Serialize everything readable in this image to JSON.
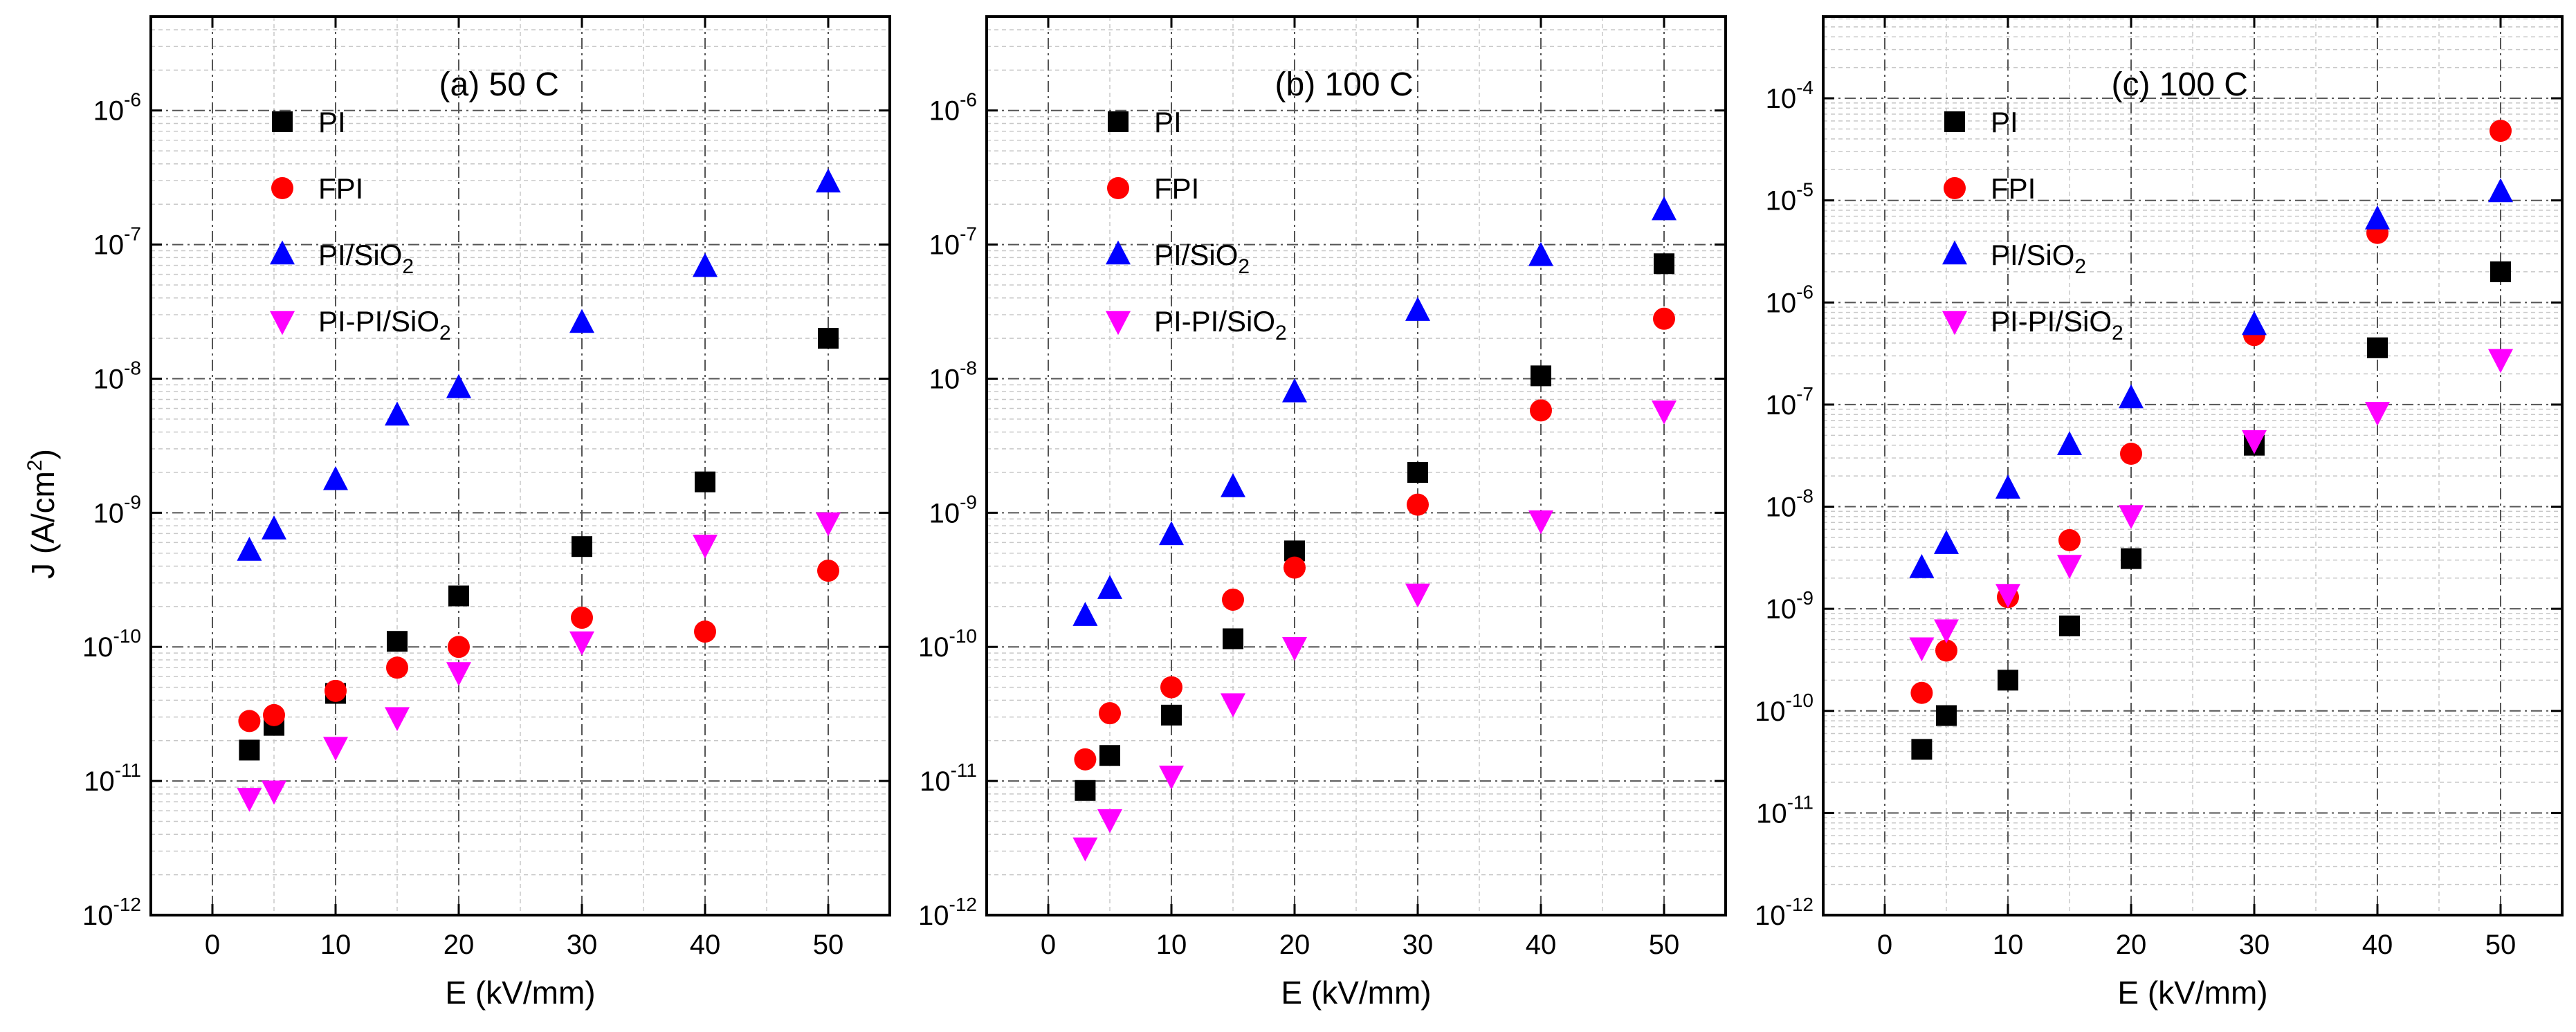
{
  "colors": {
    "PI": "#000000",
    "FPI": "#ff0000",
    "PI/SiO2": "#0000ff",
    "PI-PI/SiO2": "#ff00ff"
  },
  "chart_data": [
    {
      "type": "scatter",
      "title": "(a) 50 C",
      "xlabel": "E (kV/mm)",
      "ylabel": "J (A/cm²)",
      "yscale": "log",
      "xlim": [
        -5,
        55
      ],
      "ylim_exp": [
        -12,
        -5.3
      ],
      "x_ticks": [
        "0",
        "10",
        "20",
        "30",
        "40",
        "50"
      ],
      "y_ticks": [
        {
          "base": "10",
          "exp": "-12"
        },
        {
          "base": "10",
          "exp": "-11"
        },
        {
          "base": "10",
          "exp": "-10"
        },
        {
          "base": "10",
          "exp": "-9"
        },
        {
          "base": "10",
          "exp": "-8"
        },
        {
          "base": "10",
          "exp": "-7"
        },
        {
          "base": "10",
          "exp": "-6"
        }
      ],
      "grid": true,
      "legend": "top-left",
      "x": [
        3,
        5,
        10,
        15,
        20,
        30,
        40,
        50
      ],
      "series": [
        {
          "name": "PI",
          "legend": {
            "main": "PI",
            "sub": "",
            "tail": ""
          },
          "marker": "square",
          "values": [
            1.7e-11,
            2.6e-11,
            4.5e-11,
            1.1e-10,
            2.4e-10,
            5.6e-10,
            1.7e-09,
            2e-08
          ]
        },
        {
          "name": "FPI",
          "legend": {
            "main": "FPI",
            "sub": "",
            "tail": ""
          },
          "marker": "circle",
          "values": [
            2.8e-11,
            3.1e-11,
            4.7e-11,
            7e-11,
            1e-10,
            1.65e-10,
            1.3e-10,
            3.7e-10
          ]
        },
        {
          "name": "PI/SiO2",
          "legend": {
            "main": "PI/SiO",
            "sub": "2",
            "tail": ""
          },
          "marker": "triangle-up",
          "values": [
            5.2e-10,
            7.5e-10,
            1.75e-09,
            5.3e-09,
            8.5e-09,
            2.6e-08,
            6.8e-08,
            2.9e-07
          ]
        },
        {
          "name": "PI-PI/SiO2",
          "legend": {
            "main": "PI-PI/SiO",
            "sub": "2",
            "tail": ""
          },
          "marker": "triangle-down",
          "values": [
            7.5e-12,
            8.5e-12,
            1.8e-11,
            3e-11,
            6.5e-11,
            1.1e-10,
            5.8e-10,
            8.5e-10
          ]
        }
      ]
    },
    {
      "type": "scatter",
      "title": "(b) 100 C",
      "xlabel": "E (kV/mm)",
      "ylabel": "",
      "yscale": "log",
      "xlim": [
        -5,
        55
      ],
      "ylim_exp": [
        -12,
        -5.3
      ],
      "x_ticks": [
        "0",
        "10",
        "20",
        "30",
        "40",
        "50"
      ],
      "y_ticks": [
        {
          "base": "10",
          "exp": "-12"
        },
        {
          "base": "10",
          "exp": "-11"
        },
        {
          "base": "10",
          "exp": "-10"
        },
        {
          "base": "10",
          "exp": "-9"
        },
        {
          "base": "10",
          "exp": "-8"
        },
        {
          "base": "10",
          "exp": "-7"
        },
        {
          "base": "10",
          "exp": "-6"
        }
      ],
      "grid": true,
      "legend": "top-left",
      "x": [
        3,
        5,
        10,
        15,
        20,
        30,
        40,
        50
      ],
      "series": [
        {
          "name": "PI",
          "legend": {
            "main": "PI",
            "sub": "",
            "tail": ""
          },
          "marker": "square",
          "values": [
            8.5e-12,
            1.55e-11,
            3.1e-11,
            1.15e-10,
            5.2e-10,
            2e-09,
            1.05e-08,
            7.2e-08
          ]
        },
        {
          "name": "FPI",
          "legend": {
            "main": "FPI",
            "sub": "",
            "tail": ""
          },
          "marker": "circle",
          "values": [
            1.45e-11,
            3.2e-11,
            5e-11,
            2.25e-10,
            3.9e-10,
            1.15e-09,
            5.8e-09,
            2.8e-08
          ]
        },
        {
          "name": "PI/SiO2",
          "legend": {
            "main": "PI/SiO",
            "sub": "2",
            "tail": ""
          },
          "marker": "triangle-up",
          "values": [
            1.7e-10,
            2.7e-10,
            6.8e-10,
            1.55e-09,
            7.9e-09,
            3.2e-08,
            8.2e-08,
            1.8e-07
          ]
        },
        {
          "name": "PI-PI/SiO2",
          "legend": {
            "main": "PI-PI/SiO",
            "sub": "2",
            "tail": ""
          },
          "marker": "triangle-down",
          "values": [
            3.2e-12,
            5.2e-12,
            1.1e-11,
            3.8e-11,
            1e-10,
            2.5e-10,
            8.8e-10,
            5.8e-09
          ]
        }
      ]
    },
    {
      "type": "scatter",
      "title": "(c) 100 C",
      "xlabel": "E (kV/mm)",
      "ylabel": "",
      "yscale": "log",
      "xlim": [
        -5,
        55
      ],
      "ylim_exp": [
        -12,
        -3.2
      ],
      "x_ticks": [
        "0",
        "10",
        "20",
        "30",
        "40",
        "50"
      ],
      "y_ticks": [
        {
          "base": "10",
          "exp": "-12"
        },
        {
          "base": "10",
          "exp": "-11"
        },
        {
          "base": "10",
          "exp": "-10"
        },
        {
          "base": "10",
          "exp": "-9"
        },
        {
          "base": "10",
          "exp": "-8"
        },
        {
          "base": "10",
          "exp": "-7"
        },
        {
          "base": "10",
          "exp": "-6"
        },
        {
          "base": "10",
          "exp": "-5"
        },
        {
          "base": "10",
          "exp": "-4"
        }
      ],
      "grid": true,
      "legend": "top-left",
      "x": [
        3,
        5,
        10,
        15,
        20,
        30,
        40,
        50
      ],
      "series": [
        {
          "name": "PI",
          "legend": {
            "main": "PI",
            "sub": "",
            "tail": ""
          },
          "marker": "square",
          "values": [
            4.2e-11,
            9e-11,
            2e-10,
            6.8e-10,
            3.1e-09,
            4e-08,
            3.6e-07,
            2e-06
          ]
        },
        {
          "name": "FPI",
          "legend": {
            "main": "FPI",
            "sub": "",
            "tail": ""
          },
          "marker": "circle",
          "values": [
            1.5e-10,
            3.9e-10,
            1.3e-09,
            4.7e-09,
            3.3e-08,
            4.8e-07,
            4.8e-06,
            4.8e-05
          ]
        },
        {
          "name": "PI/SiO2",
          "legend": {
            "main": "PI/SiO",
            "sub": "2",
            "tail": ""
          },
          "marker": "triangle-up",
          "values": [
            2.5e-09,
            4.3e-09,
            1.5e-08,
            4e-08,
            1.15e-07,
            6e-07,
            6.5e-06,
            1.2e-05
          ]
        },
        {
          "name": "PI-PI/SiO2",
          "legend": {
            "main": "PI-PI/SiO",
            "sub": "2",
            "tail": ""
          },
          "marker": "triangle-down",
          "values": [
            4.2e-10,
            6.3e-10,
            1.4e-09,
            2.7e-09,
            8.3e-09,
            4.5e-08,
            8.5e-08,
            2.8e-07
          ]
        }
      ]
    }
  ]
}
